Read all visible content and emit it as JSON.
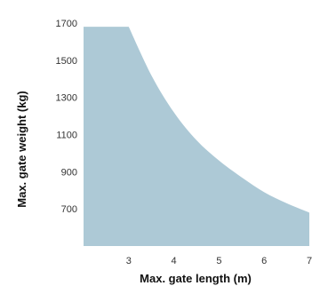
{
  "chart_data": {
    "type": "area",
    "xlabel": "Max. gate length (m)",
    "ylabel": "Max. gate weight (kg)",
    "xlim": [
      2,
      7
    ],
    "ylim": [
      500,
      1700
    ],
    "x_ticks": [
      3,
      4,
      5,
      6,
      7
    ],
    "y_ticks": [
      700,
      900,
      1100,
      1300,
      1500,
      1700
    ],
    "grid": false,
    "legend": "none",
    "fill_color": "#adc9d6",
    "series": [
      {
        "x": [
          2,
          3,
          3.5,
          4,
          4.5,
          5,
          5.5,
          6,
          6.5,
          7
        ],
        "values": [
          1680,
          1680,
          1420,
          1220,
          1070,
          960,
          870,
          790,
          730,
          680
        ]
      }
    ]
  }
}
